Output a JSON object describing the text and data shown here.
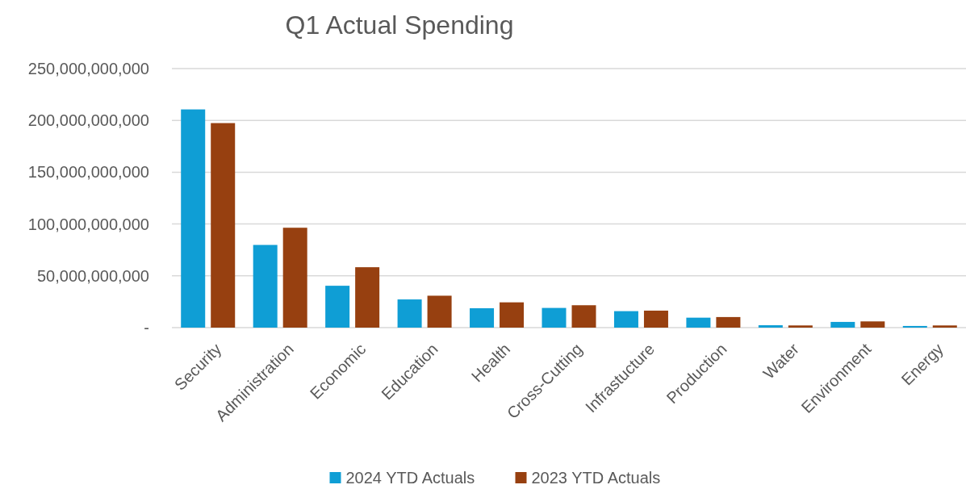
{
  "chart_data": {
    "type": "bar",
    "title": "Q1 Actual Spending",
    "categories": [
      "Security",
      "Administration",
      "Economic",
      "Education",
      "Health",
      "Cross-Cutting",
      "Infrastucture",
      "Production",
      "Water",
      "Environment",
      "Energy"
    ],
    "series": [
      {
        "name": "2024 YTD Actuals",
        "color": "#0f9ed5",
        "values": [
          210600000000,
          79800000000,
          40400000000,
          27200000000,
          18700000000,
          19000000000,
          15900000000,
          9600000000,
          2300000000,
          5500000000,
          1600000000
        ]
      },
      {
        "name": "2023 YTD Actuals",
        "color": "#974010",
        "values": [
          197400000000,
          96400000000,
          58300000000,
          30800000000,
          24400000000,
          21600000000,
          16400000000,
          10200000000,
          2100000000,
          6000000000,
          2100000000
        ]
      }
    ],
    "ylim": [
      0,
      250000000000
    ],
    "yticks": [
      {
        "value": 0,
        "label": "-"
      },
      {
        "value": 50000000000,
        "label": "50,000,000,000"
      },
      {
        "value": 100000000000,
        "label": "100,000,000,000"
      },
      {
        "value": 150000000000,
        "label": "150,000,000,000"
      },
      {
        "value": 200000000000,
        "label": "200,000,000,000"
      },
      {
        "value": 250000000000,
        "label": "250,000,000,000"
      }
    ],
    "grid": "y",
    "legend": "bottom"
  }
}
